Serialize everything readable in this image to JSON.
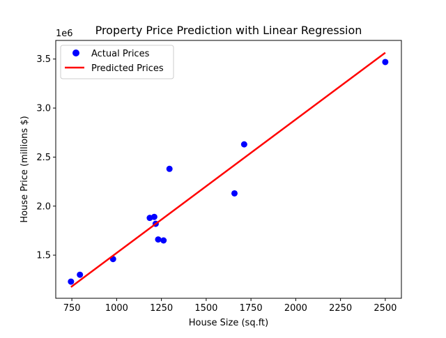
{
  "chart_data": {
    "type": "scatter",
    "title": "Property Price Prediction with Linear Regression",
    "xlabel": "House Size (sq.ft)",
    "ylabel": "House Price (millions $)",
    "y_offset_label": "1e6",
    "xlim": [
      660,
      2590
    ],
    "ylim": [
      1060000,
      3690000
    ],
    "xticks": [
      750,
      1000,
      1250,
      1500,
      1750,
      2000,
      2250,
      2500
    ],
    "yticks": [
      1500000,
      2000000,
      2500000,
      3000000,
      3500000
    ],
    "ytick_labels": [
      "1.5",
      "2.0",
      "2.5",
      "3.0",
      "3.5"
    ],
    "grid": false,
    "legend_position": "upper-left",
    "series": [
      {
        "name": "Actual Prices",
        "kind": "scatter",
        "color": "#0000ff",
        "points": [
          {
            "x": 745,
            "y": 1230000
          },
          {
            "x": 795,
            "y": 1300000
          },
          {
            "x": 980,
            "y": 1460000
          },
          {
            "x": 1185,
            "y": 1880000
          },
          {
            "x": 1210,
            "y": 1890000
          },
          {
            "x": 1218,
            "y": 1820000
          },
          {
            "x": 1232,
            "y": 1660000
          },
          {
            "x": 1262,
            "y": 1650000
          },
          {
            "x": 1295,
            "y": 2380000
          },
          {
            "x": 1658,
            "y": 2130000
          },
          {
            "x": 1712,
            "y": 2630000
          },
          {
            "x": 2500,
            "y": 3470000
          }
        ]
      },
      {
        "name": "Predicted Prices",
        "kind": "line",
        "color": "#ff0000",
        "points": [
          {
            "x": 745,
            "y": 1175000
          },
          {
            "x": 2500,
            "y": 3565000
          }
        ]
      }
    ]
  }
}
